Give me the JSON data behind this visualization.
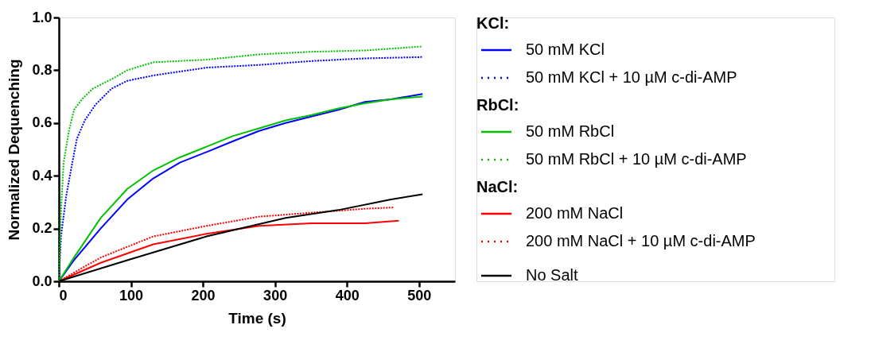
{
  "chart_data": {
    "type": "line",
    "xlabel": "Time (s)",
    "ylabel": "Normalized Dequenching",
    "xlim": [
      0,
      550
    ],
    "xticks": [
      0,
      100,
      200,
      300,
      400,
      500
    ],
    "ylim": [
      0,
      1
    ],
    "yticks": [
      {
        "value": 0,
        "label": "0.0"
      },
      {
        "value": 0.2,
        "label": "0.2"
      },
      {
        "value": 0.4,
        "label": "0.4"
      },
      {
        "value": 0.6,
        "label": "0.6"
      },
      {
        "value": 0.8,
        "label": "0.8"
      },
      {
        "value": 1,
        "label": "1.0"
      }
    ],
    "grid": false,
    "legend": "right",
    "marker": "none",
    "annotations": [
      "KCl:",
      "RbCl:",
      "NaCl:"
    ],
    "series": [
      {
        "name": "50 mM KCl",
        "color": "#0000ff",
        "line_style": "solid",
        "x": [
          0,
          21,
          58,
          95,
          131,
          168,
          205,
          241,
          278,
          315,
          351,
          388,
          425,
          461,
          505
        ],
        "values": [
          0,
          0.08,
          0.2,
          0.31,
          0.39,
          0.45,
          0.49,
          0.53,
          0.57,
          0.6,
          0.625,
          0.65,
          0.68,
          0.69,
          0.71
        ]
      },
      {
        "name": "50 mM KCl + 10 µM c-di-AMP",
        "color": "#0000ff",
        "line_style": "dotted",
        "x": [
          0,
          3,
          10,
          18,
          25,
          36,
          51,
          73,
          95,
          131,
          205,
          278,
          351,
          425,
          505
        ],
        "values": [
          0,
          0.17,
          0.32,
          0.44,
          0.54,
          0.61,
          0.67,
          0.73,
          0.76,
          0.78,
          0.81,
          0.82,
          0.835,
          0.845,
          0.85
        ]
      },
      {
        "name": "50 mM RbCl",
        "color": "#00c000",
        "line_style": "solid",
        "x": [
          0,
          21,
          58,
          95,
          131,
          168,
          205,
          241,
          278,
          315,
          351,
          388,
          425,
          461,
          505
        ],
        "values": [
          0,
          0.09,
          0.24,
          0.35,
          0.42,
          0.47,
          0.51,
          0.55,
          0.58,
          0.61,
          0.63,
          0.655,
          0.675,
          0.69,
          0.7
        ]
      },
      {
        "name": "50 mM RbCl + 10 µM c-di-AMP",
        "color": "#00c000",
        "line_style": "dotted",
        "x": [
          0,
          3,
          6.6,
          14,
          21,
          32,
          47,
          76,
          95,
          131,
          205,
          278,
          351,
          425,
          505
        ],
        "values": [
          0,
          0.27,
          0.45,
          0.57,
          0.65,
          0.69,
          0.73,
          0.77,
          0.8,
          0.83,
          0.84,
          0.86,
          0.87,
          0.875,
          0.89
        ]
      },
      {
        "name": "200 mM NaCl",
        "color": "#ff0000",
        "line_style": "solid",
        "x": [
          0,
          58,
          131,
          205,
          278,
          351,
          425,
          472
        ],
        "values": [
          0,
          0.07,
          0.14,
          0.18,
          0.21,
          0.22,
          0.22,
          0.23
        ]
      },
      {
        "name": "200 mM NaCl + 10 µM c-di-AMP",
        "color": "#ff0000",
        "line_style": "dotted",
        "x": [
          0,
          58,
          131,
          205,
          278,
          351,
          425,
          465
        ],
        "values": [
          0,
          0.09,
          0.17,
          0.21,
          0.245,
          0.26,
          0.275,
          0.28
        ]
      },
      {
        "name": "No Salt",
        "color": "#000000",
        "line_style": "solid",
        "x": [
          0,
          95,
          205,
          315,
          388,
          461,
          505
        ],
        "values": [
          0,
          0.08,
          0.17,
          0.24,
          0.27,
          0.31,
          0.33
        ]
      }
    ]
  }
}
